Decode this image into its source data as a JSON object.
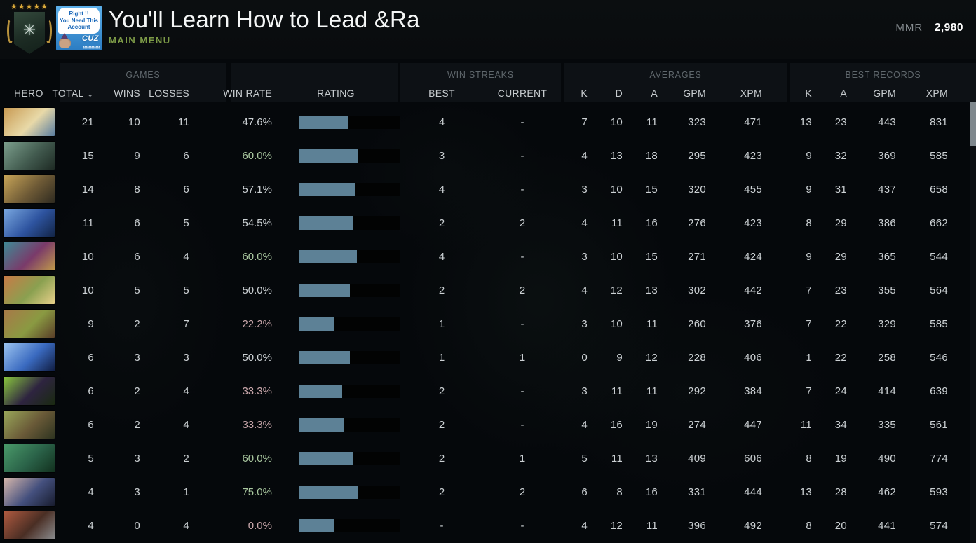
{
  "header": {
    "title": "You'll Learn How to Lead &Ra",
    "menu_label": "MAIN MENU",
    "mmr_label": "MMR",
    "mmr_value": "2,980",
    "rank_stars": "★★★★★",
    "avatar": {
      "bubble_line1": "Right !!",
      "bubble_line2": "You Need This",
      "bubble_line3": "Account",
      "watermark": "CUZ",
      "chevrons": "»»»»»»"
    }
  },
  "table": {
    "groups": [
      {
        "label": "GAMES"
      },
      {
        "label": "WIN STREAKS"
      },
      {
        "label": "AVERAGES"
      },
      {
        "label": "BEST RECORDS"
      }
    ],
    "columns": [
      {
        "label": "HERO"
      },
      {
        "label": "TOTAL",
        "caret": "⌄"
      },
      {
        "label": "WINS"
      },
      {
        "label": "LOSSES"
      },
      {
        "label": "WIN RATE"
      },
      {
        "label": "RATING"
      },
      {
        "label": "BEST"
      },
      {
        "label": "CURRENT"
      },
      {
        "label": "K"
      },
      {
        "label": "D"
      },
      {
        "label": "A"
      },
      {
        "label": "GPM"
      },
      {
        "label": "XPM"
      },
      {
        "label": "K"
      },
      {
        "label": "A"
      },
      {
        "label": "GPM"
      },
      {
        "label": "XPM"
      }
    ],
    "rows": [
      {
        "total": "21",
        "wins": "10",
        "losses": "11",
        "win_rate": "47.6%",
        "win_rate_color": "neutral",
        "rating_pct": 48,
        "streak_best": "4",
        "streak_current": "-",
        "avg": {
          "k": "7",
          "d": "10",
          "a": "11",
          "gpm": "323",
          "xpm": "471"
        },
        "best": {
          "k": "13",
          "a": "23",
          "gpm": "443",
          "xpm": "831"
        },
        "portrait": [
          "#c89a52",
          "#e8d9a8",
          "#5a7da0"
        ]
      },
      {
        "total": "15",
        "wins": "9",
        "losses": "6",
        "win_rate": "60.0%",
        "win_rate_color": "green",
        "rating_pct": 58,
        "streak_best": "3",
        "streak_current": "-",
        "avg": {
          "k": "4",
          "d": "13",
          "a": "18",
          "gpm": "295",
          "xpm": "423"
        },
        "best": {
          "k": "9",
          "a": "32",
          "gpm": "369",
          "xpm": "585"
        },
        "portrait": [
          "#7da08e",
          "#435c50",
          "#1e2a24"
        ]
      },
      {
        "total": "14",
        "wins": "8",
        "losses": "6",
        "win_rate": "57.1%",
        "win_rate_color": "neutral",
        "rating_pct": 56,
        "streak_best": "4",
        "streak_current": "-",
        "avg": {
          "k": "3",
          "d": "10",
          "a": "15",
          "gpm": "320",
          "xpm": "455"
        },
        "best": {
          "k": "9",
          "a": "31",
          "gpm": "437",
          "xpm": "658"
        },
        "portrait": [
          "#c8a558",
          "#6e5a36",
          "#2e2a20"
        ]
      },
      {
        "total": "11",
        "wins": "6",
        "losses": "5",
        "win_rate": "54.5%",
        "win_rate_color": "neutral",
        "rating_pct": 54,
        "streak_best": "2",
        "streak_current": "2",
        "avg": {
          "k": "4",
          "d": "11",
          "a": "16",
          "gpm": "276",
          "xpm": "423"
        },
        "best": {
          "k": "8",
          "a": "29",
          "gpm": "386",
          "xpm": "662"
        },
        "portrait": [
          "#7aa8e0",
          "#2e54a0",
          "#122446"
        ]
      },
      {
        "total": "10",
        "wins": "6",
        "losses": "4",
        "win_rate": "60.0%",
        "win_rate_color": "green",
        "rating_pct": 57,
        "streak_best": "4",
        "streak_current": "-",
        "avg": {
          "k": "3",
          "d": "10",
          "a": "15",
          "gpm": "271",
          "xpm": "424"
        },
        "best": {
          "k": "9",
          "a": "29",
          "gpm": "365",
          "xpm": "544"
        },
        "portrait": [
          "#3e8a96",
          "#7a3a6a",
          "#c09a4a"
        ]
      },
      {
        "total": "10",
        "wins": "5",
        "losses": "5",
        "win_rate": "50.0%",
        "win_rate_color": "neutral",
        "rating_pct": 50,
        "streak_best": "2",
        "streak_current": "2",
        "avg": {
          "k": "4",
          "d": "12",
          "a": "13",
          "gpm": "302",
          "xpm": "442"
        },
        "best": {
          "k": "7",
          "a": "23",
          "gpm": "355",
          "xpm": "564"
        },
        "portrait": [
          "#c87a46",
          "#8aa050",
          "#e8d08a"
        ]
      },
      {
        "total": "9",
        "wins": "2",
        "losses": "7",
        "win_rate": "22.2%",
        "win_rate_color": "red",
        "rating_pct": 35,
        "streak_best": "1",
        "streak_current": "-",
        "avg": {
          "k": "3",
          "d": "10",
          "a": "11",
          "gpm": "260",
          "xpm": "376"
        },
        "best": {
          "k": "7",
          "a": "22",
          "gpm": "329",
          "xpm": "585"
        },
        "portrait": [
          "#a87848",
          "#8a9a42",
          "#5a3e28"
        ]
      },
      {
        "total": "6",
        "wins": "3",
        "losses": "3",
        "win_rate": "50.0%",
        "win_rate_color": "neutral",
        "rating_pct": 50,
        "streak_best": "1",
        "streak_current": "1",
        "avg": {
          "k": "0",
          "d": "9",
          "a": "12",
          "gpm": "228",
          "xpm": "406"
        },
        "best": {
          "k": "1",
          "a": "22",
          "gpm": "258",
          "xpm": "546"
        },
        "portrait": [
          "#9cc4f0",
          "#3a6ac0",
          "#101c40"
        ]
      },
      {
        "total": "6",
        "wins": "2",
        "losses": "4",
        "win_rate": "33.3%",
        "win_rate_color": "red",
        "rating_pct": 43,
        "streak_best": "2",
        "streak_current": "-",
        "avg": {
          "k": "3",
          "d": "11",
          "a": "11",
          "gpm": "292",
          "xpm": "384"
        },
        "best": {
          "k": "7",
          "a": "24",
          "gpm": "414",
          "xpm": "639"
        },
        "portrait": [
          "#8ac83e",
          "#2e2440",
          "#1a2a10"
        ]
      },
      {
        "total": "6",
        "wins": "2",
        "losses": "4",
        "win_rate": "33.3%",
        "win_rate_color": "red",
        "rating_pct": 44,
        "streak_best": "2",
        "streak_current": "-",
        "avg": {
          "k": "4",
          "d": "16",
          "a": "19",
          "gpm": "274",
          "xpm": "447"
        },
        "best": {
          "k": "11",
          "a": "34",
          "gpm": "335",
          "xpm": "561"
        },
        "portrait": [
          "#9aa85a",
          "#6a5a38",
          "#2e3420"
        ]
      },
      {
        "total": "5",
        "wins": "3",
        "losses": "2",
        "win_rate": "60.0%",
        "win_rate_color": "green",
        "rating_pct": 54,
        "streak_best": "2",
        "streak_current": "1",
        "avg": {
          "k": "5",
          "d": "11",
          "a": "13",
          "gpm": "409",
          "xpm": "606"
        },
        "best": {
          "k": "8",
          "a": "19",
          "gpm": "490",
          "xpm": "774"
        },
        "portrait": [
          "#4a9a6a",
          "#2a6248",
          "#12301e"
        ]
      },
      {
        "total": "4",
        "wins": "3",
        "losses": "1",
        "win_rate": "75.0%",
        "win_rate_color": "green",
        "rating_pct": 58,
        "streak_best": "2",
        "streak_current": "2",
        "avg": {
          "k": "6",
          "d": "8",
          "a": "16",
          "gpm": "331",
          "xpm": "444"
        },
        "best": {
          "k": "13",
          "a": "28",
          "gpm": "462",
          "xpm": "593"
        },
        "portrait": [
          "#d8b8ac",
          "#44507e",
          "#181c2e"
        ]
      },
      {
        "total": "4",
        "wins": "0",
        "losses": "4",
        "win_rate": "0.0%",
        "win_rate_color": "red",
        "rating_pct": 35,
        "streak_best": "-",
        "streak_current": "-",
        "avg": {
          "k": "4",
          "d": "12",
          "a": "11",
          "gpm": "396",
          "xpm": "492"
        },
        "best": {
          "k": "8",
          "a": "20",
          "gpm": "441",
          "xpm": "574"
        },
        "portrait": [
          "#b05a40",
          "#4a2e24",
          "#8a8c8e"
        ]
      }
    ]
  },
  "colors": {
    "win_rate_positive": "#a9c79f",
    "win_rate_negative": "#c9a7ab",
    "win_rate_neutral": "#ccd1d4",
    "rating_bar_fill": "#5d8196",
    "rating_bar_track": "#020303",
    "menu_green": "#7d9b47",
    "column_header_text": "#c6cbce",
    "group_label_text": "#5f676c"
  }
}
